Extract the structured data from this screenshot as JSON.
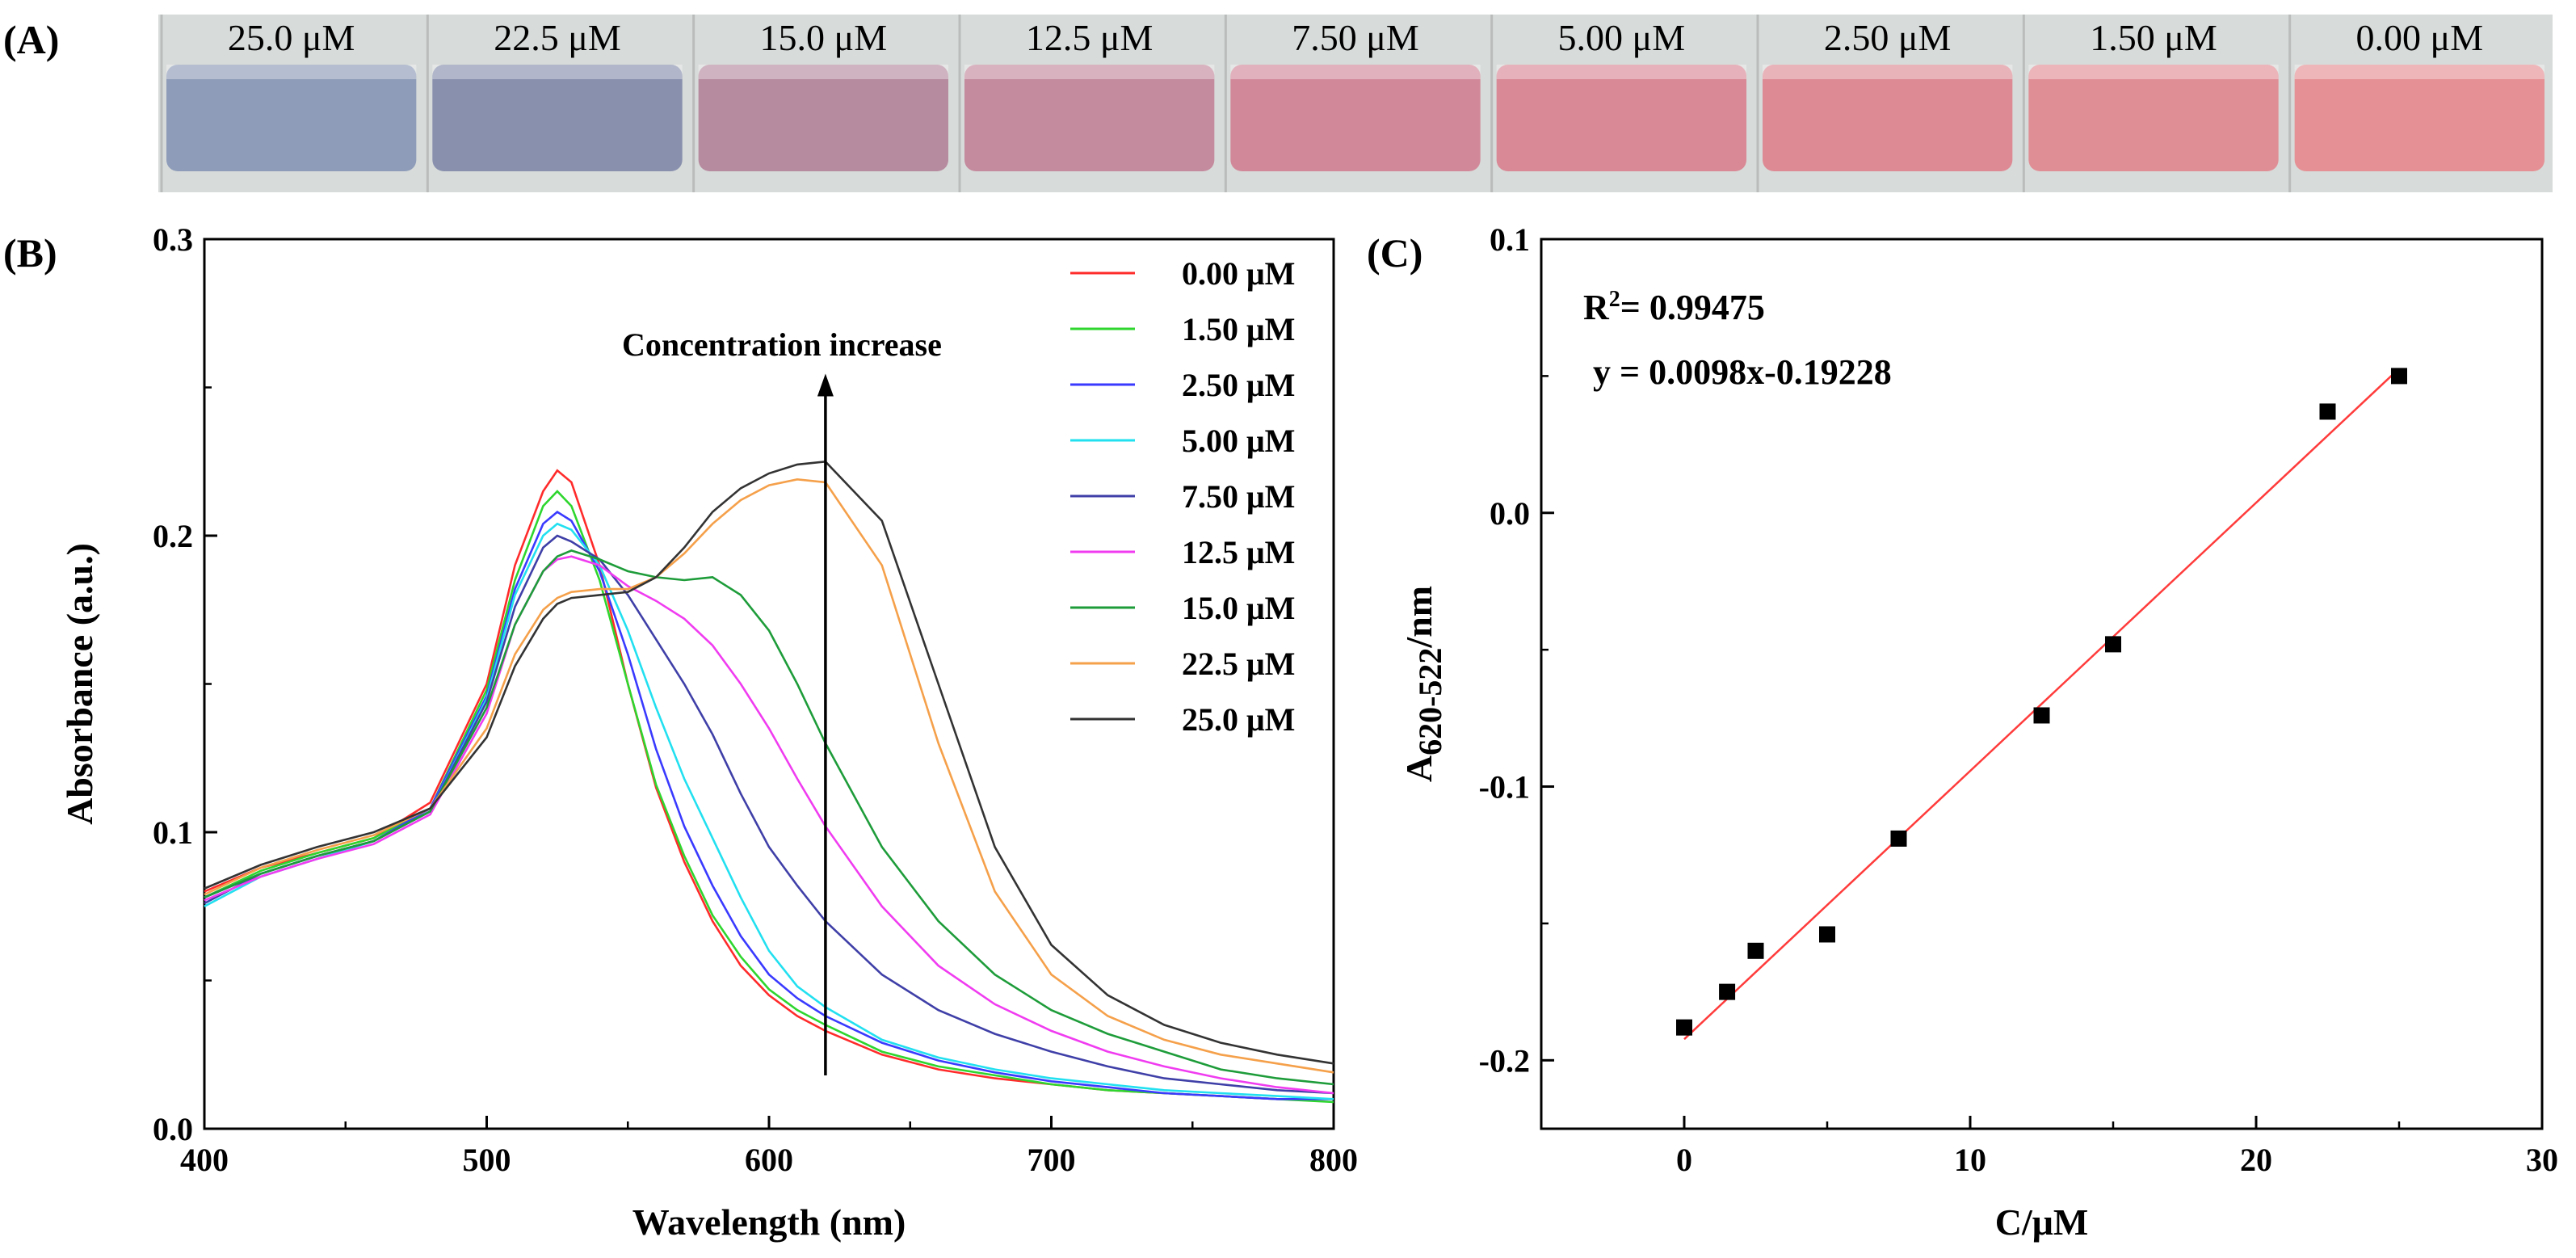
{
  "panel_labels": {
    "a": "(A)",
    "b": "(B)",
    "c": "(C)"
  },
  "vials": {
    "labels": [
      "25.0 μM",
      "22.5 μM",
      "15.0 μM",
      "12.5 μM",
      "7.50 μM",
      "5.00 μM",
      "2.50 μM",
      "1.50 μM",
      "0.00 μM"
    ],
    "colors": [
      "#8e9cb9",
      "#8890ae",
      "#b68a9f",
      "#c48a9d",
      "#d1899a",
      "#d98895",
      "#dd8a95",
      "#e08e96",
      "#e59094"
    ]
  },
  "chart_data": [
    {
      "type": "line",
      "panel": "B",
      "xlabel": "Wavelength (nm)",
      "ylabel": "Absorbance (a.u.)",
      "xlim": [
        400,
        800
      ],
      "ylim": [
        0.0,
        0.3
      ],
      "xticks": [
        "400",
        "500",
        "600",
        "700",
        "800"
      ],
      "yticks": [
        "0.0",
        "0.1",
        "0.2",
        "0.3"
      ],
      "legend_position": "top-right",
      "annotation": "Concentration increase",
      "arrow_x": 620,
      "arrow_y": [
        0.018,
        0.253
      ],
      "series": [
        {
          "name": "0.00 μM",
          "color": "#ff2b2b",
          "x": [
            400,
            420,
            440,
            460,
            480,
            500,
            510,
            520,
            525,
            530,
            540,
            550,
            560,
            570,
            580,
            590,
            600,
            610,
            620,
            640,
            660,
            680,
            700,
            720,
            740,
            760,
            780,
            800
          ],
          "y": [
            0.08,
            0.088,
            0.093,
            0.098,
            0.11,
            0.15,
            0.19,
            0.215,
            0.222,
            0.218,
            0.19,
            0.15,
            0.115,
            0.09,
            0.07,
            0.055,
            0.045,
            0.038,
            0.033,
            0.025,
            0.02,
            0.017,
            0.015,
            0.013,
            0.012,
            0.011,
            0.01,
            0.01
          ]
        },
        {
          "name": "1.50 μM",
          "color": "#2ed62e",
          "x": [
            400,
            420,
            440,
            460,
            480,
            500,
            510,
            520,
            525,
            530,
            540,
            550,
            560,
            570,
            580,
            590,
            600,
            610,
            620,
            640,
            660,
            680,
            700,
            720,
            740,
            760,
            780,
            800
          ],
          "y": [
            0.078,
            0.087,
            0.093,
            0.098,
            0.108,
            0.148,
            0.185,
            0.21,
            0.215,
            0.21,
            0.185,
            0.15,
            0.116,
            0.092,
            0.072,
            0.058,
            0.047,
            0.04,
            0.035,
            0.026,
            0.021,
            0.018,
            0.015,
            0.013,
            0.012,
            0.011,
            0.01,
            0.009
          ]
        },
        {
          "name": "2.50 μM",
          "color": "#3a3aff",
          "x": [
            400,
            420,
            440,
            460,
            480,
            500,
            510,
            520,
            525,
            530,
            540,
            550,
            560,
            570,
            580,
            590,
            600,
            610,
            620,
            640,
            660,
            680,
            700,
            720,
            740,
            760,
            780,
            800
          ],
          "y": [
            0.078,
            0.086,
            0.092,
            0.097,
            0.108,
            0.146,
            0.182,
            0.204,
            0.208,
            0.205,
            0.188,
            0.16,
            0.128,
            0.102,
            0.082,
            0.065,
            0.052,
            0.044,
            0.038,
            0.029,
            0.023,
            0.019,
            0.016,
            0.014,
            0.012,
            0.011,
            0.01,
            0.01
          ]
        },
        {
          "name": "5.00 μM",
          "color": "#22e0f0",
          "x": [
            400,
            420,
            440,
            460,
            480,
            500,
            510,
            520,
            525,
            530,
            540,
            550,
            560,
            570,
            580,
            590,
            600,
            610,
            620,
            640,
            660,
            680,
            700,
            720,
            740,
            760,
            780,
            800
          ],
          "y": [
            0.075,
            0.085,
            0.091,
            0.097,
            0.107,
            0.145,
            0.18,
            0.2,
            0.204,
            0.202,
            0.19,
            0.168,
            0.142,
            0.118,
            0.098,
            0.078,
            0.06,
            0.048,
            0.041,
            0.03,
            0.024,
            0.02,
            0.017,
            0.015,
            0.013,
            0.012,
            0.011,
            0.01
          ]
        },
        {
          "name": "7.50 μM",
          "color": "#3f3fa8",
          "x": [
            400,
            420,
            440,
            460,
            480,
            500,
            510,
            520,
            525,
            530,
            540,
            550,
            560,
            570,
            580,
            590,
            600,
            610,
            620,
            640,
            660,
            680,
            700,
            720,
            740,
            760,
            780,
            800
          ],
          "y": [
            0.076,
            0.086,
            0.092,
            0.097,
            0.107,
            0.144,
            0.176,
            0.196,
            0.2,
            0.198,
            0.192,
            0.18,
            0.165,
            0.15,
            0.133,
            0.113,
            0.095,
            0.082,
            0.07,
            0.052,
            0.04,
            0.032,
            0.026,
            0.021,
            0.017,
            0.015,
            0.013,
            0.012
          ]
        },
        {
          "name": "12.5 μM",
          "color": "#f03cf0",
          "x": [
            400,
            420,
            440,
            460,
            480,
            500,
            510,
            520,
            525,
            530,
            540,
            550,
            560,
            570,
            580,
            590,
            600,
            610,
            620,
            640,
            660,
            680,
            700,
            720,
            740,
            760,
            780,
            800
          ],
          "y": [
            0.077,
            0.085,
            0.091,
            0.096,
            0.106,
            0.14,
            0.17,
            0.188,
            0.192,
            0.193,
            0.19,
            0.183,
            0.178,
            0.172,
            0.163,
            0.15,
            0.135,
            0.118,
            0.102,
            0.075,
            0.055,
            0.042,
            0.033,
            0.026,
            0.021,
            0.017,
            0.014,
            0.012
          ]
        },
        {
          "name": "15.0 μM",
          "color": "#1e9c3a",
          "x": [
            400,
            420,
            440,
            460,
            480,
            500,
            510,
            520,
            525,
            530,
            540,
            550,
            560,
            570,
            580,
            590,
            600,
            610,
            620,
            640,
            660,
            680,
            700,
            720,
            740,
            760,
            780,
            800
          ],
          "y": [
            0.078,
            0.086,
            0.092,
            0.097,
            0.107,
            0.142,
            0.17,
            0.188,
            0.193,
            0.195,
            0.192,
            0.188,
            0.186,
            0.185,
            0.186,
            0.18,
            0.168,
            0.15,
            0.13,
            0.095,
            0.07,
            0.052,
            0.04,
            0.032,
            0.026,
            0.02,
            0.017,
            0.015
          ]
        },
        {
          "name": "22.5 μM",
          "color": "#f5a04a",
          "x": [
            400,
            420,
            440,
            460,
            480,
            500,
            510,
            520,
            525,
            530,
            540,
            550,
            560,
            570,
            580,
            590,
            600,
            610,
            620,
            640,
            660,
            680,
            700,
            720,
            740,
            760,
            780,
            800
          ],
          "y": [
            0.079,
            0.088,
            0.094,
            0.099,
            0.108,
            0.135,
            0.16,
            0.175,
            0.179,
            0.181,
            0.182,
            0.182,
            0.186,
            0.194,
            0.204,
            0.212,
            0.217,
            0.219,
            0.218,
            0.19,
            0.13,
            0.08,
            0.052,
            0.038,
            0.03,
            0.025,
            0.022,
            0.019
          ]
        },
        {
          "name": "25.0 μM",
          "color": "#333333",
          "x": [
            400,
            420,
            440,
            460,
            480,
            500,
            510,
            520,
            525,
            530,
            540,
            550,
            560,
            570,
            580,
            590,
            600,
            610,
            620,
            640,
            660,
            680,
            700,
            720,
            740,
            760,
            780,
            800
          ],
          "y": [
            0.081,
            0.089,
            0.095,
            0.1,
            0.108,
            0.132,
            0.156,
            0.172,
            0.177,
            0.179,
            0.18,
            0.181,
            0.186,
            0.196,
            0.208,
            0.216,
            0.221,
            0.224,
            0.225,
            0.205,
            0.15,
            0.095,
            0.062,
            0.045,
            0.035,
            0.029,
            0.025,
            0.022
          ]
        }
      ]
    },
    {
      "type": "scatter",
      "panel": "C",
      "xlabel": "C/μM",
      "ylabel_main": "A",
      "ylabel_sub": "620-522",
      "ylabel_unit": "/nm",
      "xlim": [
        -5,
        30
      ],
      "ylim": [
        -0.225,
        0.1
      ],
      "xticks": [
        "0",
        "10",
        "20",
        "30"
      ],
      "xtick_values": [
        0,
        10,
        20,
        30
      ],
      "yticks": [
        "-0.2",
        "-0.1",
        "0.0",
        "0.1"
      ],
      "ytick_values": [
        -0.2,
        -0.1,
        0.0,
        0.1
      ],
      "r2_prefix": "R",
      "r2_sup": "2",
      "r2_value": "= 0.99475",
      "equation": "y = 0.0098x-0.19228",
      "fit_color": "#ff3b3b",
      "fit_slope": 0.0098,
      "fit_intercept": -0.19228,
      "fit_range": [
        0,
        25
      ],
      "points": {
        "x": [
          0,
          1.5,
          2.5,
          5.0,
          7.5,
          12.5,
          15.0,
          22.5,
          25.0
        ],
        "y": [
          -0.188,
          -0.175,
          -0.16,
          -0.154,
          -0.119,
          -0.074,
          -0.048,
          0.037,
          0.05
        ]
      }
    }
  ]
}
